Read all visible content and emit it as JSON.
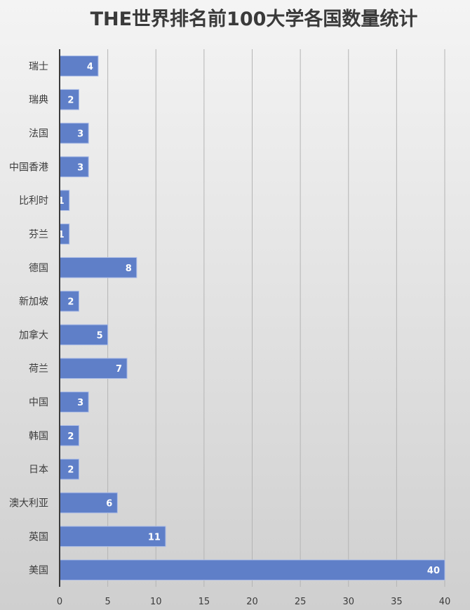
{
  "chart_data": {
    "type": "bar",
    "orientation": "horizontal",
    "title": "THE世界排名前100大学各国数量统计",
    "categories": [
      "瑞士",
      "瑞典",
      "法国",
      "中国香港",
      "比利时",
      "芬兰",
      "德国",
      "新加坡",
      "加拿大",
      "荷兰",
      "中国",
      "韩国",
      "日本",
      "澳大利亚",
      "英国",
      "美国"
    ],
    "values": [
      4,
      2,
      3,
      3,
      1,
      1,
      8,
      2,
      5,
      7,
      3,
      2,
      2,
      6,
      11,
      40
    ],
    "xlim": [
      0,
      40
    ],
    "xticks": [
      0,
      5,
      10,
      15,
      20,
      25,
      30,
      35,
      40
    ],
    "xlabel": "",
    "ylabel": "",
    "grid": "vertical",
    "legend": "none",
    "data_labels": true,
    "colors": {
      "bar": "#5f7fc8",
      "bar_edge": "#aabbe6",
      "label": "#ffffff",
      "grid": "#b4b4b4",
      "axis": "#3a3a3a"
    }
  }
}
